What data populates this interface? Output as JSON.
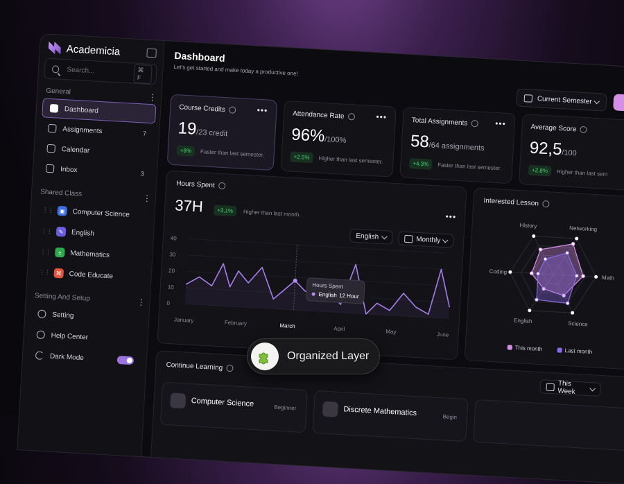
{
  "app": {
    "name": "Academicia"
  },
  "search": {
    "placeholder": "Search...",
    "shortcut": "⌘ F"
  },
  "sidebar": {
    "general_label": "General",
    "general": [
      {
        "label": "Dashboard",
        "count": "",
        "icon": "dashboard-icon"
      },
      {
        "label": "Assignments",
        "count": "7",
        "icon": "assignment-icon"
      },
      {
        "label": "Calendar",
        "count": "",
        "icon": "calendar-icon"
      },
      {
        "label": "Inbox",
        "count": "3",
        "icon": "inbox-icon"
      }
    ],
    "shared_label": "Shared Class",
    "shared": [
      {
        "label": "Computer Science",
        "color": "#3b6fe0"
      },
      {
        "label": "English",
        "color": "#6b5ce0"
      },
      {
        "label": "Mathematics",
        "color": "#2fa84f"
      },
      {
        "label": "Code Educate",
        "color": "#e0553b"
      }
    ],
    "settings_label": "Setting And Setup",
    "settings": [
      {
        "label": "Setting",
        "icon": "gear-icon"
      },
      {
        "label": "Help Center",
        "icon": "help-icon"
      },
      {
        "label": "Dark Mode",
        "icon": "moon-icon"
      }
    ]
  },
  "header": {
    "title": "Dashboard",
    "subtitle": "Let's get started and make today a productive one!",
    "semester": "Current Semester"
  },
  "kpis": [
    {
      "label": "Course Credits",
      "value": "19",
      "unit": "/23 credit",
      "delta": "+8%",
      "note": "Faster than last semester."
    },
    {
      "label": "Attendance Rate",
      "value": "96%",
      "unit": "/100%",
      "delta": "+2.5%",
      "note": "Higher than last semester."
    },
    {
      "label": "Total Assignments",
      "value": "58",
      "unit": "/64 assignments",
      "delta": "+4.3%",
      "note": "Faster than last semester."
    },
    {
      "label": "Average Score",
      "value": "92,5",
      "unit": "/100",
      "delta": "+2,8%",
      "note": "Higher than last sem"
    }
  ],
  "hours": {
    "title": "Hours Spent",
    "value": "37H",
    "delta": "+3,1%",
    "note": "Higher than last month.",
    "language": "English",
    "period": "Monthly",
    "tooltip": {
      "title": "Hours Spent",
      "series": "English",
      "value": "12 Hour"
    }
  },
  "interested": {
    "title": "Interested Lesson",
    "legend_this": "This month",
    "legend_last": "Last month"
  },
  "continue": {
    "title": "Continue Learning",
    "week": "This Week",
    "courses": [
      {
        "name": "Computer Science",
        "level": "Beginner"
      },
      {
        "name": "Discrete Mathematics",
        "level": "Begin"
      }
    ]
  },
  "badge": {
    "label": "Organized Layer"
  },
  "colors": {
    "accent": "#9b74e0",
    "positive": "#4ad37a",
    "this_month": "#d48fe6",
    "last_month": "#8a6ae8"
  },
  "chart_data": [
    {
      "type": "line",
      "title": "Hours Spent",
      "xlabel": "",
      "ylabel": "",
      "categories": [
        "January",
        "February",
        "March",
        "April",
        "May",
        "June"
      ],
      "y_ticks": [
        0,
        10,
        20,
        30,
        40
      ],
      "ylim": [
        0,
        40
      ],
      "grid": true,
      "series": [
        {
          "name": "English",
          "x": [
            0,
            0.25,
            0.5,
            0.7,
            0.85,
            1,
            1.2,
            1.45,
            1.7,
            1.9,
            2.1,
            2.3,
            2.55,
            2.75,
            3.0,
            3.25,
            3.5,
            3.7,
            3.95,
            4.2,
            4.45,
            4.7,
            4.9,
            5.1
          ],
          "values": [
            12,
            17,
            12,
            26,
            12,
            22,
            15,
            25,
            6,
            12,
            18,
            12,
            9,
            13,
            5,
            30,
            0,
            7,
            3,
            14,
            6,
            2,
            30,
            7
          ]
        }
      ]
    },
    {
      "type": "radar",
      "title": "Interested Lesson",
      "categories": [
        "History",
        "Networking",
        "Math",
        "Science",
        "English",
        "Coding"
      ],
      "rlim": [
        0,
        100
      ],
      "series": [
        {
          "name": "This month",
          "values": [
            65,
            85,
            70,
            55,
            40,
            50
          ]
        },
        {
          "name": "Last month",
          "values": [
            40,
            60,
            55,
            75,
            70,
            35
          ]
        }
      ]
    }
  ]
}
